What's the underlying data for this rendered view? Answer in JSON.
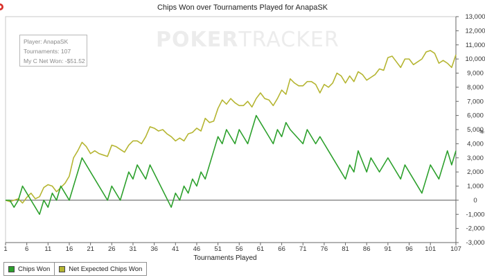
{
  "watermark": {
    "bold": "POKER",
    "thin": "TRACKER"
  },
  "info_box": {
    "player": "Player: AnapaSK",
    "tournaments": "Tournaments: 107",
    "net_won": "My C Net Won: -$51.52"
  },
  "legend": [
    {
      "label": "Chips Won",
      "color": "#2ca02c"
    },
    {
      "label": "Net Expected Chips Won",
      "color": "#b5b531"
    }
  ],
  "chart_data": {
    "type": "line",
    "title": "Chips Won over Tournaments Played for ",
    "title_player": "AnapaSK",
    "title_icon": "poker-chip-icon",
    "xlabel": "Tournaments Played",
    "ylabel": "#",
    "xlim": [
      1,
      107
    ],
    "ylim": [
      -3000,
      13000
    ],
    "x_ticks": [
      1,
      6,
      11,
      16,
      21,
      26,
      31,
      36,
      41,
      46,
      51,
      56,
      61,
      66,
      71,
      76,
      81,
      86,
      91,
      96,
      101,
      107
    ],
    "y_ticks": [
      -3000,
      -2000,
      -1000,
      0,
      1000,
      2000,
      3000,
      4000,
      5000,
      6000,
      7000,
      8000,
      9000,
      10000,
      11000,
      12000,
      13000
    ],
    "y_tick_labels": [
      "-3,000",
      "-2,000",
      "-1,000",
      "0",
      "1,000",
      "2,000",
      "3,000",
      "4,000",
      "5,000",
      "6,000",
      "7,000",
      "8,000",
      "9,000",
      "10,000",
      "11,000",
      "12,000",
      "13,000"
    ],
    "grid": false,
    "legend_position": "bottom-left",
    "series": [
      {
        "name": "Chips Won",
        "color": "#2ca02c",
        "points": [
          [
            1,
            0
          ],
          [
            2,
            0
          ],
          [
            3,
            -500
          ],
          [
            4,
            0
          ],
          [
            5,
            1000
          ],
          [
            6,
            500
          ],
          [
            7,
            0
          ],
          [
            8,
            -500
          ],
          [
            9,
            -1000
          ],
          [
            10,
            0
          ],
          [
            11,
            -500
          ],
          [
            12,
            500
          ],
          [
            13,
            0
          ],
          [
            14,
            1000
          ],
          [
            15,
            500
          ],
          [
            16,
            0
          ],
          [
            17,
            1000
          ],
          [
            18,
            2000
          ],
          [
            19,
            3000
          ],
          [
            25,
            0
          ],
          [
            26,
            1000
          ],
          [
            28,
            0
          ],
          [
            30,
            2000
          ],
          [
            31,
            1500
          ],
          [
            32,
            2500
          ],
          [
            34,
            1500
          ],
          [
            35,
            2500
          ],
          [
            40,
            -500
          ],
          [
            41,
            500
          ],
          [
            42,
            0
          ],
          [
            43,
            1000
          ],
          [
            44,
            500
          ],
          [
            45,
            1500
          ],
          [
            46,
            1000
          ],
          [
            47,
            2000
          ],
          [
            48,
            1500
          ],
          [
            50,
            3500
          ],
          [
            51,
            4500
          ],
          [
            52,
            4000
          ],
          [
            53,
            5000
          ],
          [
            55,
            4000
          ],
          [
            56,
            5000
          ],
          [
            58,
            4000
          ],
          [
            60,
            6000
          ],
          [
            64,
            4000
          ],
          [
            65,
            5000
          ],
          [
            66,
            4500
          ],
          [
            67,
            5500
          ],
          [
            68,
            5000
          ],
          [
            71,
            4000
          ],
          [
            72,
            5000
          ],
          [
            74,
            4000
          ],
          [
            75,
            4500
          ],
          [
            76,
            4000
          ],
          [
            77,
            3500
          ],
          [
            81,
            1500
          ],
          [
            82,
            2500
          ],
          [
            83,
            2000
          ],
          [
            84,
            3500
          ],
          [
            86,
            2000
          ],
          [
            87,
            3000
          ],
          [
            89,
            2000
          ],
          [
            91,
            3000
          ],
          [
            94,
            1500
          ],
          [
            95,
            2500
          ],
          [
            99,
            500
          ],
          [
            100,
            1500
          ],
          [
            101,
            2500
          ],
          [
            103,
            1500
          ],
          [
            105,
            3500
          ],
          [
            106,
            2500
          ],
          [
            107,
            3500
          ]
        ]
      },
      {
        "name": "Net Expected Chips Won",
        "color": "#b5b531",
        "points": [
          [
            1,
            0
          ],
          [
            2,
            -100
          ],
          [
            3,
            0
          ],
          [
            4,
            100
          ],
          [
            5,
            -200
          ],
          [
            6,
            200
          ],
          [
            7,
            500
          ],
          [
            8,
            100
          ],
          [
            9,
            250
          ],
          [
            10,
            900
          ],
          [
            11,
            1100
          ],
          [
            12,
            1000
          ],
          [
            13,
            600
          ],
          [
            14,
            900
          ],
          [
            15,
            1200
          ],
          [
            16,
            1700
          ],
          [
            17,
            3000
          ],
          [
            18,
            3500
          ],
          [
            19,
            4100
          ],
          [
            20,
            3800
          ],
          [
            21,
            3300
          ],
          [
            22,
            3500
          ],
          [
            23,
            3300
          ],
          [
            24,
            3200
          ],
          [
            25,
            3100
          ],
          [
            26,
            3900
          ],
          [
            27,
            3800
          ],
          [
            28,
            3600
          ],
          [
            29,
            3400
          ],
          [
            30,
            3900
          ],
          [
            31,
            4200
          ],
          [
            32,
            4200
          ],
          [
            33,
            4000
          ],
          [
            34,
            4500
          ],
          [
            35,
            5200
          ],
          [
            36,
            5100
          ],
          [
            37,
            4900
          ],
          [
            38,
            5000
          ],
          [
            39,
            4700
          ],
          [
            40,
            4500
          ],
          [
            41,
            4200
          ],
          [
            42,
            4400
          ],
          [
            43,
            4200
          ],
          [
            44,
            4700
          ],
          [
            45,
            4800
          ],
          [
            46,
            5100
          ],
          [
            47,
            4900
          ],
          [
            48,
            5800
          ],
          [
            49,
            5500
          ],
          [
            50,
            5600
          ],
          [
            51,
            6500
          ],
          [
            52,
            7100
          ],
          [
            53,
            6800
          ],
          [
            54,
            7200
          ],
          [
            55,
            6900
          ],
          [
            56,
            6700
          ],
          [
            57,
            6700
          ],
          [
            58,
            7000
          ],
          [
            59,
            6600
          ],
          [
            60,
            7200
          ],
          [
            61,
            7600
          ],
          [
            62,
            7200
          ],
          [
            63,
            7100
          ],
          [
            64,
            6700
          ],
          [
            65,
            7200
          ],
          [
            66,
            7800
          ],
          [
            67,
            7500
          ],
          [
            68,
            8600
          ],
          [
            69,
            8300
          ],
          [
            70,
            8100
          ],
          [
            71,
            8100
          ],
          [
            72,
            8400
          ],
          [
            73,
            8400
          ],
          [
            74,
            8200
          ],
          [
            75,
            7600
          ],
          [
            76,
            8200
          ],
          [
            77,
            8000
          ],
          [
            78,
            8300
          ],
          [
            79,
            9000
          ],
          [
            80,
            8800
          ],
          [
            81,
            8300
          ],
          [
            82,
            8800
          ],
          [
            83,
            8400
          ],
          [
            84,
            9100
          ],
          [
            85,
            8900
          ],
          [
            86,
            8500
          ],
          [
            87,
            8700
          ],
          [
            88,
            8900
          ],
          [
            89,
            9300
          ],
          [
            90,
            9200
          ],
          [
            91,
            10100
          ],
          [
            92,
            10200
          ],
          [
            93,
            9800
          ],
          [
            94,
            9400
          ],
          [
            95,
            10000
          ],
          [
            96,
            10000
          ],
          [
            97,
            9600
          ],
          [
            98,
            9800
          ],
          [
            99,
            10000
          ],
          [
            100,
            10500
          ],
          [
            101,
            10600
          ],
          [
            102,
            10400
          ],
          [
            103,
            9700
          ],
          [
            104,
            9900
          ],
          [
            105,
            9700
          ],
          [
            106,
            9400
          ],
          [
            107,
            10300
          ]
        ]
      }
    ]
  }
}
